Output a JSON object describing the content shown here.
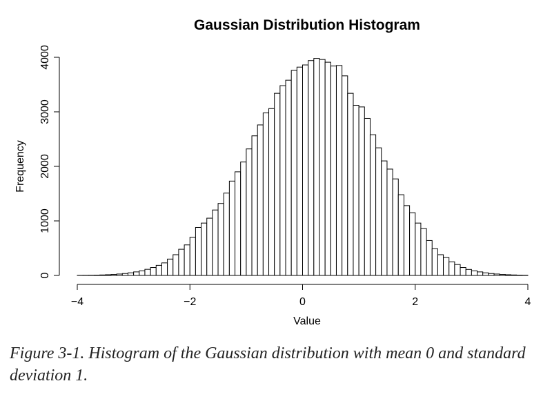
{
  "chart_data": {
    "type": "bar",
    "title": "Gaussian Distribution Histogram",
    "xlabel": "Value",
    "ylabel": "Frequency",
    "xlim": [
      -4,
      4
    ],
    "ylim": [
      0,
      4000
    ],
    "x_ticks": [
      -4,
      -2,
      0,
      2,
      4
    ],
    "x_tick_labels": [
      "−4",
      "−2",
      "0",
      "2",
      "4"
    ],
    "y_ticks": [
      0,
      1000,
      2000,
      3000,
      4000
    ],
    "y_tick_labels": [
      "0",
      "1000",
      "2000",
      "3000",
      "4000"
    ],
    "bin_width": 0.1,
    "bin_start": -4.0,
    "counts": [
      2,
      3,
      4,
      6,
      9,
      13,
      18,
      26,
      35,
      48,
      65,
      85,
      112,
      145,
      185,
      230,
      300,
      380,
      480,
      560,
      700,
      880,
      960,
      1050,
      1200,
      1320,
      1510,
      1730,
      1900,
      2080,
      2320,
      2560,
      2760,
      2980,
      3060,
      3340,
      3480,
      3580,
      3760,
      3820,
      3860,
      3940,
      3980,
      3960,
      3910,
      3840,
      3850,
      3660,
      3340,
      3120,
      3090,
      2880,
      2580,
      2340,
      2100,
      1950,
      1770,
      1480,
      1280,
      1150,
      960,
      860,
      640,
      490,
      380,
      330,
      250,
      200,
      145,
      110,
      85,
      65,
      48,
      35,
      26,
      18,
      13,
      9,
      6,
      4
    ]
  },
  "caption": "Figure 3-1. Histogram of the Gaussian distribution with mean 0 and standard deviation 1."
}
